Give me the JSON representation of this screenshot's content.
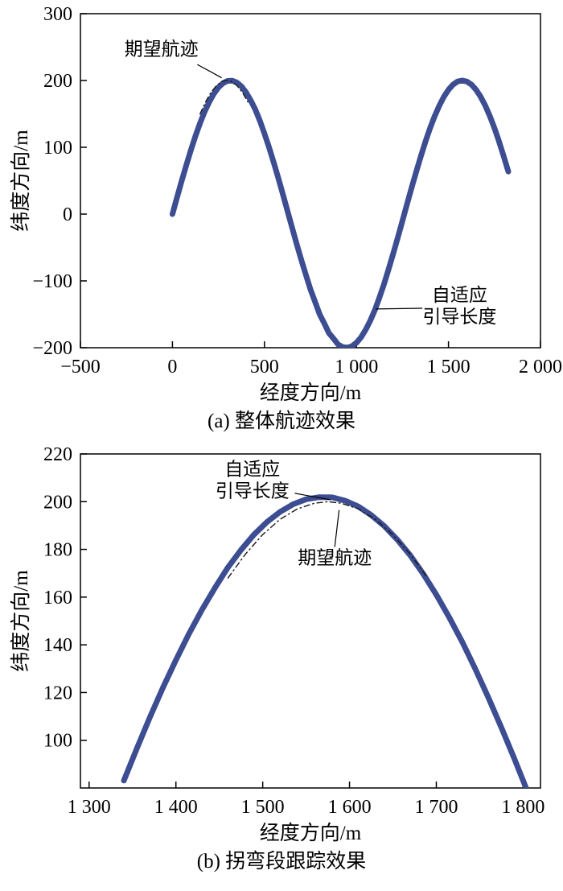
{
  "page": {
    "background": "#ffffff"
  },
  "chart_data": [
    {
      "id": "a",
      "type": "line",
      "caption": "(a) 整体航迹效果",
      "xlabel": "经度方向/m",
      "ylabel": "纬度方向/m",
      "xlim": [
        -500,
        2000
      ],
      "ylim": [
        -200,
        300
      ],
      "grid": false,
      "legend": "none",
      "xticks": [
        -500,
        0,
        500,
        1000,
        1500,
        2000
      ],
      "xtick_labels": [
        "−500",
        "0",
        "500",
        "1 000",
        "1 500",
        "2 000"
      ],
      "yticks": [
        -200,
        -100,
        0,
        100,
        200,
        300
      ],
      "ytick_labels": [
        "−200",
        "−100",
        "0",
        "100",
        "200",
        "300"
      ],
      "series": [
        {
          "name": "自适应引导长度",
          "key": "adaptive-guidance-trajectory",
          "style": "solid",
          "color": "#3d4d92",
          "width": 7,
          "points": [
            [
              0,
              0
            ],
            [
              25,
              24.9
            ],
            [
              50,
              49.3
            ],
            [
              75,
              73.1
            ],
            [
              100,
              95.7
            ],
            [
              125,
              116.7
            ],
            [
              150,
              136
            ],
            [
              175,
              153.2
            ],
            [
              200,
              168
            ],
            [
              225,
              180.2
            ],
            [
              250,
              189.6
            ],
            [
              275,
              196
            ],
            [
              300,
              199.4
            ],
            [
              325,
              199.8
            ],
            [
              350,
              197
            ],
            [
              375,
              191.2
            ],
            [
              400,
              182.3
            ],
            [
              425,
              170.5
            ],
            [
              450,
              156.6
            ],
            [
              475,
              139.7
            ],
            [
              500,
              120.5
            ],
            [
              525,
              100
            ],
            [
              550,
              77.7
            ],
            [
              575,
              54.1
            ],
            [
              600,
              29.8
            ],
            [
              625,
              5
            ],
            [
              650,
              -19.9
            ],
            [
              675,
              -44.5
            ],
            [
              700,
              -68.4
            ],
            [
              725,
              -90.8
            ],
            [
              750,
              -112.7
            ],
            [
              775,
              -131.2
            ],
            [
              800,
              -149.9
            ],
            [
              825,
              -163.6
            ],
            [
              850,
              -178
            ],
            [
              875,
              -186.1
            ],
            [
              900,
              -195
            ],
            [
              925,
              -199
            ],
            [
              950,
              -199.9
            ],
            [
              975,
              -197.8
            ],
            [
              1000,
              -192.5
            ],
            [
              1025,
              -184.4
            ],
            [
              1050,
              -173.2
            ],
            [
              1075,
              -159.4
            ],
            [
              1100,
              -143.6
            ],
            [
              1125,
              -124.7
            ],
            [
              1150,
              -104.7
            ],
            [
              1175,
              -82.3
            ],
            [
              1200,
              -58.8
            ],
            [
              1225,
              -34.7
            ],
            [
              1250,
              -10
            ],
            [
              1275,
              15
            ],
            [
              1300,
              39.6
            ],
            [
              1325,
              63.7
            ],
            [
              1350,
              86.8
            ],
            [
              1375,
              108.5
            ],
            [
              1400,
              128.6
            ],
            [
              1425,
              146.5
            ],
            [
              1450,
              162.3
            ],
            [
              1475,
              175.7
            ],
            [
              1500,
              186.2
            ],
            [
              1525,
              193.8
            ],
            [
              1550,
              198.5
            ],
            [
              1575,
              200
            ],
            [
              1600,
              198.4
            ],
            [
              1625,
              193.8
            ],
            [
              1650,
              186.1
            ],
            [
              1675,
              175.7
            ],
            [
              1700,
              162.3
            ],
            [
              1725,
              146.5
            ],
            [
              1750,
              128.5
            ],
            [
              1775,
              108.5
            ],
            [
              1800,
              86.7
            ],
            [
              1825,
              63.7
            ]
          ]
        },
        {
          "name": "期望航迹",
          "key": "desired-trajectory",
          "style": "dashdot",
          "color": "#1a1a1a",
          "width": 1.4,
          "points": [
            [
              150,
              149.9
            ],
            [
              180,
              168
            ],
            [
              210,
              182.3
            ],
            [
              240,
              192.6
            ],
            [
              270,
              198.5
            ],
            [
              295,
              200
            ],
            [
              320,
              198.4
            ],
            [
              350,
              192.5
            ],
            [
              380,
              182.3
            ],
            [
              410,
              168
            ]
          ]
        }
      ],
      "annotations": [
        {
          "lines": [
            "期望航迹"
          ],
          "x": -60,
          "y": 238,
          "leader": [
            [
              135,
              224
            ],
            [
              268,
              204
            ]
          ]
        },
        {
          "lines": [
            "自适应",
            "引导长度"
          ],
          "x": 1560,
          "y": -130,
          "leader": [
            [
              1358,
              -141
            ],
            [
              1105,
              -142
            ]
          ]
        }
      ]
    },
    {
      "id": "b",
      "type": "line",
      "caption": "(b) 拐弯段跟踪效果",
      "xlabel": "经度方向/m",
      "ylabel": "纬度方向/m",
      "xlim": [
        1290,
        1820
      ],
      "ylim": [
        80,
        220
      ],
      "grid": false,
      "legend": "none",
      "xticks": [
        1300,
        1400,
        1500,
        1600,
        1700,
        1800
      ],
      "xtick_labels": [
        "1 300",
        "1 400",
        "1 500",
        "1 600",
        "1 700",
        "1 800"
      ],
      "yticks": [
        100,
        120,
        140,
        160,
        180,
        200,
        220
      ],
      "ytick_labels": [
        "100",
        "120",
        "140",
        "160",
        "180",
        "200",
        "220"
      ],
      "series": [
        {
          "name": "自适应引导长度",
          "key": "adaptive-guidance-trajectory",
          "style": "solid",
          "color": "#3d4d92",
          "width": 7,
          "points": [
            [
              1340,
              83.1
            ],
            [
              1355,
              96.6
            ],
            [
              1370,
              109.6
            ],
            [
              1385,
              122
            ],
            [
              1400,
              133.6
            ],
            [
              1415,
              144.6
            ],
            [
              1430,
              154.7
            ],
            [
              1445,
              163.9
            ],
            [
              1460,
              172.5
            ],
            [
              1475,
              179.8
            ],
            [
              1490,
              186.2
            ],
            [
              1505,
              191.5
            ],
            [
              1520,
              195.7
            ],
            [
              1535,
              198.9
            ],
            [
              1550,
              201
            ],
            [
              1565,
              201.9
            ],
            [
              1580,
              201.8
            ],
            [
              1595,
              200.4
            ],
            [
              1610,
              198
            ],
            [
              1625,
              194.4
            ],
            [
              1640,
              189.8
            ],
            [
              1655,
              184.1
            ],
            [
              1670,
              177.5
            ],
            [
              1685,
              169.7
            ],
            [
              1700,
              161
            ],
            [
              1715,
              151.4
            ],
            [
              1730,
              141.1
            ],
            [
              1745,
              129.8
            ],
            [
              1760,
              117.9
            ],
            [
              1775,
              105.3
            ],
            [
              1790,
              92.2
            ],
            [
              1805,
              78.5
            ]
          ]
        },
        {
          "name": "期望航迹",
          "key": "desired-trajectory",
          "style": "dashdot",
          "color": "#1a1a1a",
          "width": 1.4,
          "points": [
            [
              1460,
              168
            ],
            [
              1480,
              178
            ],
            [
              1500,
              186.2
            ],
            [
              1520,
              192.6
            ],
            [
              1540,
              197
            ],
            [
              1560,
              199.4
            ],
            [
              1575,
              200
            ],
            [
              1590,
              199.4
            ],
            [
              1610,
              197
            ],
            [
              1630,
              192.5
            ],
            [
              1650,
              186.1
            ],
            [
              1670,
              178
            ],
            [
              1690,
              168
            ]
          ]
        }
      ],
      "annotations": [
        {
          "lines": [
            "自适应",
            "引导长度"
          ],
          "x": 1488,
          "y": 211,
          "leader": [
            [
              1537,
              203.5
            ],
            [
              1578,
              200.8
            ]
          ]
        },
        {
          "lines": [
            "期望航迹"
          ],
          "x": 1583,
          "y": 174,
          "leader": [
            [
              1583,
              181
            ],
            [
              1588,
              196.5
            ]
          ]
        }
      ]
    }
  ]
}
